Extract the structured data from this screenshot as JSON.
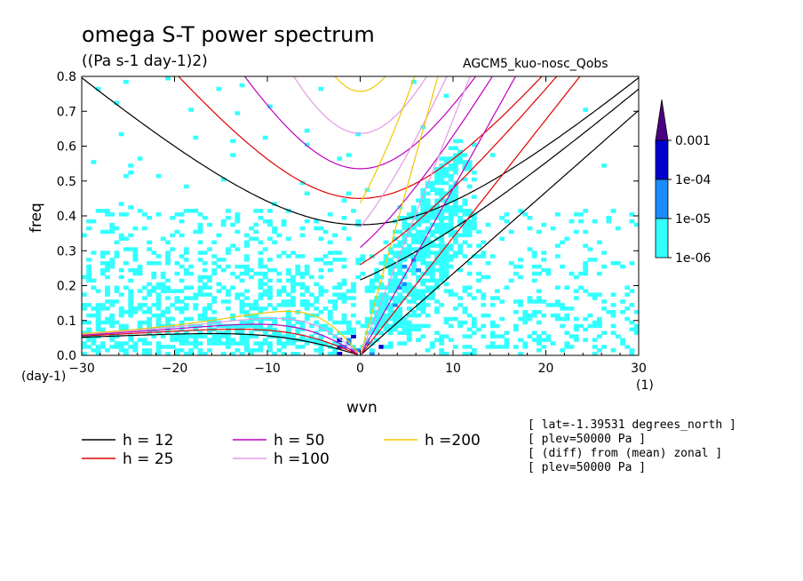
{
  "title": "omega S-T power spectrum",
  "units": "((Pa s-1 day-1)2)",
  "run_name": "AGCM5_kuo-nosc_Qobs",
  "chart_data": {
    "type": "heatmap",
    "xlabel": "wvn",
    "ylabel": "freq",
    "x_unit": "(1)",
    "y_unit": "(day-1)",
    "xlim": [
      -30,
      30
    ],
    "ylim": [
      0,
      0.8
    ],
    "x_ticks": [
      -30,
      -20,
      -10,
      0,
      10,
      20,
      30
    ],
    "y_ticks": [
      0.0,
      0.1,
      0.2,
      0.3,
      0.4,
      0.5,
      0.6,
      0.7,
      0.8
    ],
    "colorbar": {
      "levels": [
        "1e-06",
        "1e-05",
        "1e-04",
        "0.001"
      ],
      "colors": [
        "#33ffff",
        "#1a8cff",
        "#0000cc",
        "#4b0082"
      ]
    },
    "dispersion_curves": [
      {
        "label": "h = 12",
        "h": 12,
        "color": "#000000"
      },
      {
        "label": "h = 25",
        "h": 25,
        "color": "#e00000"
      },
      {
        "label": "h = 50",
        "h": 50,
        "color": "#c000c0"
      },
      {
        "label": "h =100",
        "h": 100,
        "color": "#e39be3"
      },
      {
        "label": "h =200",
        "h": 200,
        "color": "#f0c800"
      }
    ],
    "grid": false
  },
  "info": [
    "[ lat=-1.39531 degrees_north ]",
    "[ plev=50000 Pa ]",
    "[ (diff) from (mean) zonal ]",
    "[ plev=50000 Pa ]"
  ]
}
